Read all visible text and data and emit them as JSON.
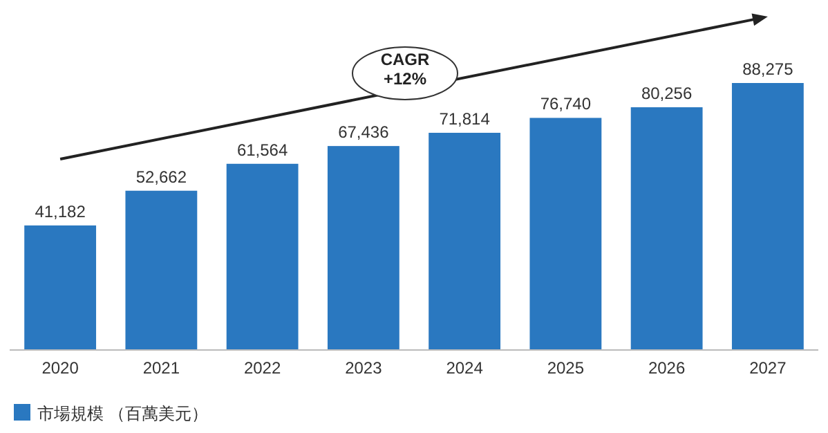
{
  "chart_data": {
    "type": "bar",
    "categories": [
      "2020",
      "2021",
      "2022",
      "2023",
      "2024",
      "2025",
      "2026",
      "2027"
    ],
    "series": [
      {
        "name": "市場規模 （百萬美元）",
        "color": "#2a78c0",
        "values": [
          41182,
          52662,
          61564,
          67436,
          71814,
          76740,
          80256,
          88275
        ],
        "value_labels": [
          "41,182",
          "52,662",
          "61,564",
          "67,436",
          "71,814",
          "76,740",
          "80,256",
          "88,275"
        ]
      }
    ],
    "annotations": [
      "CAGR\n+12%"
    ],
    "legend": "bottom left"
  }
}
